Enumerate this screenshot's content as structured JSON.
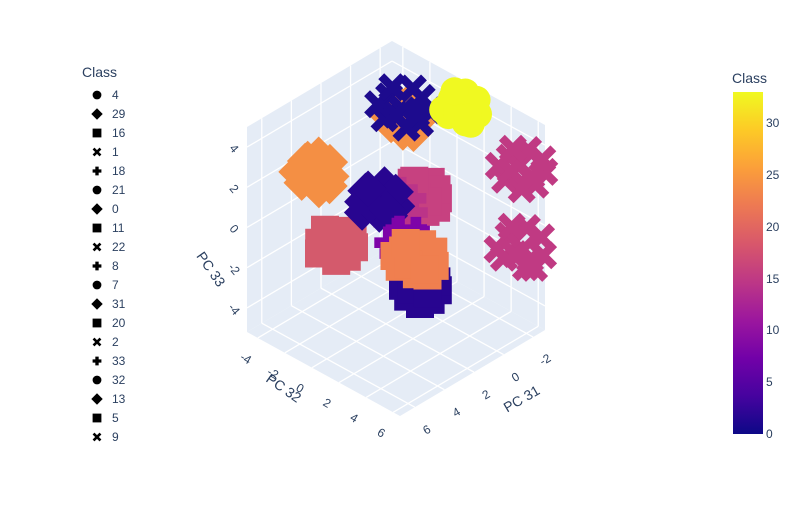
{
  "chart_data": {
    "type": "scatter3d",
    "legend_title": "Class",
    "legend_items": [
      {
        "label": "4",
        "symbol": "circle"
      },
      {
        "label": "29",
        "symbol": "diamond"
      },
      {
        "label": "16",
        "symbol": "square"
      },
      {
        "label": "1",
        "symbol": "x"
      },
      {
        "label": "18",
        "symbol": "cross"
      },
      {
        "label": "21",
        "symbol": "circle"
      },
      {
        "label": "0",
        "symbol": "diamond"
      },
      {
        "label": "11",
        "symbol": "square"
      },
      {
        "label": "22",
        "symbol": "x"
      },
      {
        "label": "8",
        "symbol": "cross"
      },
      {
        "label": "7",
        "symbol": "circle"
      },
      {
        "label": "31",
        "symbol": "diamond"
      },
      {
        "label": "20",
        "symbol": "square"
      },
      {
        "label": "2",
        "symbol": "x"
      },
      {
        "label": "33",
        "symbol": "cross"
      },
      {
        "label": "32",
        "symbol": "circle"
      },
      {
        "label": "13",
        "symbol": "diamond"
      },
      {
        "label": "5",
        "symbol": "square"
      },
      {
        "label": "9",
        "symbol": "x"
      }
    ],
    "axes": {
      "x": {
        "label": "PC 31",
        "ticks": [
          "-2",
          "0",
          "2",
          "4",
          "6"
        ]
      },
      "y": {
        "label": "PC 32",
        "ticks": [
          "-4",
          "-2",
          "0",
          "2",
          "4",
          "6"
        ]
      },
      "z": {
        "label": "PC 33",
        "ticks": [
          "-4",
          "-2",
          "0",
          "2",
          "4"
        ]
      }
    },
    "colorbar": {
      "title": "Class",
      "range": [
        0,
        33
      ],
      "ticks": [
        "0",
        "5",
        "10",
        "15",
        "20",
        "25",
        "30"
      ],
      "colorscale": [
        "#0d0887",
        "#46039f",
        "#7201a8",
        "#9c179e",
        "#bd3786",
        "#d8576b",
        "#ed7953",
        "#fb9f3a",
        "#fdca26",
        "#f0f921"
      ]
    },
    "clusters": [
      {
        "class": 15,
        "symbol": "x",
        "color": "#c03a83",
        "xyz": [
          -3.0,
          4.5,
          2.0
        ]
      },
      {
        "class": 14,
        "symbol": "x",
        "color": "#c03a83",
        "xyz": [
          -3.0,
          4.5,
          -2.0
        ]
      },
      {
        "class": 16,
        "symbol": "square",
        "color": "#c74180",
        "xyz": [
          0.0,
          0.5,
          0.5
        ]
      },
      {
        "class": 14,
        "symbol": "cross",
        "color": "#bb3488",
        "xyz": [
          1.0,
          -0.5,
          0.0
        ]
      },
      {
        "class": 19,
        "symbol": "square",
        "color": "#d45a6c",
        "xyz": [
          4.5,
          -1.0,
          -0.5
        ]
      },
      {
        "class": 26,
        "symbol": "diamond",
        "color": "#f48f44",
        "xyz": [
          -1.0,
          -2.0,
          3.0
        ]
      },
      {
        "class": 26,
        "symbol": "diamond",
        "color": "#f48f44",
        "xyz": [
          4.5,
          -2.5,
          2.5
        ]
      },
      {
        "class": 1,
        "symbol": "x",
        "color": "#1d0b8e",
        "xyz": [
          -1.0,
          -2.0,
          3.5
        ]
      },
      {
        "class": 2,
        "symbol": "diamond",
        "color": "#280590",
        "xyz": [
          3.0,
          0.5,
          1.5
        ]
      },
      {
        "class": 2,
        "symbol": "square",
        "color": "#280590",
        "xyz": [
          2.0,
          2.5,
          -2.5
        ]
      },
      {
        "class": 33,
        "symbol": "circle",
        "color": "#f0f921",
        "xyz": [
          -4.0,
          -1.0,
          2.5
        ]
      },
      {
        "class": 8,
        "symbol": "cross",
        "color": "#7e03a8",
        "xyz": [
          1.0,
          0.5,
          -1.5
        ]
      },
      {
        "class": 24,
        "symbol": "square",
        "color": "#f07f4f",
        "xyz": [
          0.5,
          0.5,
          -2.5
        ]
      }
    ]
  }
}
